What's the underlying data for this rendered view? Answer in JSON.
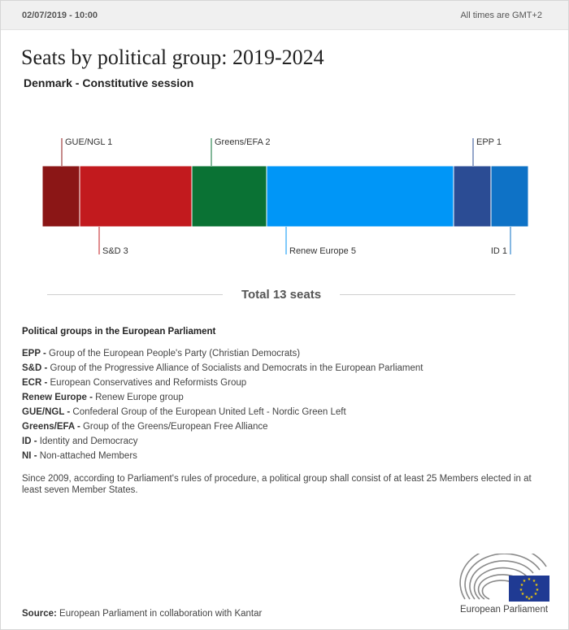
{
  "header": {
    "date": "02/07/2019 - 10:00",
    "timezone": "All times are GMT+2"
  },
  "title": "Seats by political group: 2019-2024",
  "subtitle": "Denmark - Constitutive session",
  "total": "Total 13 seats",
  "legend": {
    "title": "Political groups in the European Parliament",
    "items": [
      {
        "abbr": "EPP -",
        "desc": " Group of the European People's Party (Christian Democrats)"
      },
      {
        "abbr": "S&D -",
        "desc": " Group of the Progressive Alliance of Socialists and Democrats in the European Parliament"
      },
      {
        "abbr": "ECR -",
        "desc": " European Conservatives and Reformists Group"
      },
      {
        "abbr": "Renew Europe -",
        "desc": " Renew Europe group"
      },
      {
        "abbr": "GUE/NGL -",
        "desc": " Confederal Group of the European United Left - Nordic Green Left"
      },
      {
        "abbr": "Greens/EFA -",
        "desc": " Group of the Greens/European Free Alliance"
      },
      {
        "abbr": "ID -",
        "desc": " Identity and Democracy"
      },
      {
        "abbr": "NI -",
        "desc": " Non-attached Members"
      }
    ]
  },
  "note": "Since 2009, according to Parliament's rules of procedure, a political group shall consist of at least 25 Members elected in at least seven Member States.",
  "source": {
    "label": "Source:",
    "text": " European Parliament in collaboration with Kantar"
  },
  "logo": {
    "text": "European Parliament",
    "icon": "european-parliament-logo"
  },
  "colors": {
    "GUE/NGL": "#8b1616",
    "S&D": "#c21a1e",
    "Greens/EFA": "#0a7234",
    "Renew Europe": "#0096f7",
    "EPP": "#2b4c94",
    "ID": "#0e72c6"
  },
  "chart_data": {
    "type": "bar",
    "orientation": "horizontal-stacked",
    "title": "Seats by political group: 2019-2024",
    "subtitle": "Denmark - Constitutive session",
    "total": 13,
    "categories": [
      "GUE/NGL",
      "S&D",
      "Greens/EFA",
      "Renew Europe",
      "EPP",
      "ID"
    ],
    "values": [
      1,
      3,
      2,
      5,
      1,
      1
    ],
    "labels": [
      "GUE/NGL 1",
      "S&D 3",
      "Greens/EFA 2",
      "Renew Europe 5",
      "EPP 1",
      "ID 1"
    ],
    "label_side": [
      "top",
      "bottom",
      "top",
      "bottom",
      "top",
      "bottom"
    ]
  }
}
